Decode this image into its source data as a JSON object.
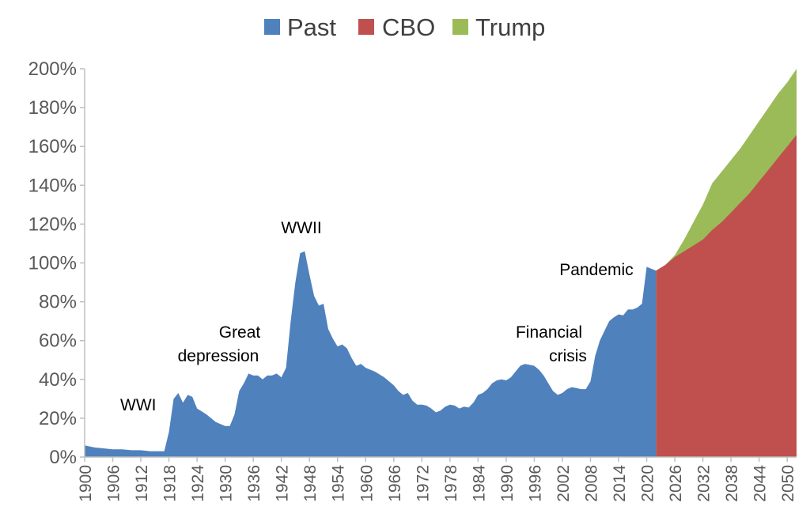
{
  "chart_data": {
    "type": "area",
    "ylim": [
      0,
      200
    ],
    "xlim": [
      1900,
      2052
    ],
    "y_ticks": [
      "0%",
      "20%",
      "40%",
      "60%",
      "80%",
      "100%",
      "120%",
      "140%",
      "160%",
      "180%",
      "200%"
    ],
    "x_ticks": [
      "1900",
      "1906",
      "1912",
      "1918",
      "1924",
      "1930",
      "1936",
      "1942",
      "1948",
      "1954",
      "1960",
      "1966",
      "1972",
      "1978",
      "1984",
      "1990",
      "1996",
      "2002",
      "2008",
      "2014",
      "2020",
      "2026",
      "2032",
      "2038",
      "2044",
      "2050"
    ],
    "legend": {
      "placement": "top-center",
      "entries": [
        "Past",
        "CBO",
        "Trump"
      ]
    },
    "grid": false,
    "series": [
      {
        "name": "Past",
        "color": "#4f81bd",
        "x": [
          1900,
          1902,
          1904,
          1906,
          1908,
          1910,
          1912,
          1914,
          1916,
          1917,
          1918,
          1919,
          1920,
          1921,
          1922,
          1923,
          1924,
          1926,
          1928,
          1929,
          1930,
          1931,
          1932,
          1933,
          1934,
          1935,
          1936,
          1937,
          1938,
          1939,
          1940,
          1941,
          1942,
          1943,
          1944,
          1945,
          1946,
          1947,
          1948,
          1949,
          1950,
          1951,
          1952,
          1953,
          1954,
          1955,
          1956,
          1957,
          1958,
          1959,
          1960,
          1962,
          1964,
          1966,
          1967,
          1968,
          1969,
          1970,
          1971,
          1972,
          1973,
          1974,
          1975,
          1976,
          1977,
          1978,
          1979,
          1980,
          1981,
          1982,
          1983,
          1984,
          1985,
          1986,
          1987,
          1988,
          1989,
          1990,
          1991,
          1992,
          1993,
          1994,
          1995,
          1996,
          1997,
          1998,
          1999,
          2000,
          2001,
          2002,
          2003,
          2004,
          2005,
          2006,
          2007,
          2008,
          2009,
          2010,
          2011,
          2012,
          2013,
          2014,
          2015,
          2016,
          2017,
          2018,
          2019,
          2020,
          2021,
          2022
        ],
        "values": [
          6,
          5,
          4.5,
          4,
          4,
          3.5,
          3.5,
          3,
          3,
          3,
          13,
          30,
          33,
          28,
          32,
          31,
          25,
          22,
          18,
          17,
          16,
          16,
          22,
          34,
          38,
          43,
          42,
          42,
          40,
          42,
          42,
          43,
          41,
          46,
          70,
          90,
          105,
          106,
          94,
          83,
          78,
          79,
          66,
          61,
          57,
          58,
          56,
          51,
          47,
          48,
          46,
          44,
          41,
          37,
          34,
          32,
          33,
          29,
          27,
          27,
          26.5,
          25,
          23,
          24,
          26,
          27,
          26.5,
          25,
          26,
          25.5,
          28,
          32,
          33,
          35,
          38,
          39.5,
          40,
          39.5,
          41,
          44,
          47,
          48,
          47.5,
          47,
          45,
          42,
          38,
          34,
          32,
          33,
          35,
          36,
          35.5,
          35,
          35,
          39,
          52,
          60,
          65,
          70,
          72,
          73.5,
          73,
          76,
          76,
          77,
          79,
          98,
          97,
          96
        ]
      },
      {
        "name": "CBO",
        "color": "#c0504d",
        "x": [
          2022,
          2024,
          2026,
          2028,
          2030,
          2032,
          2034,
          2036,
          2038,
          2040,
          2042,
          2044,
          2046,
          2048,
          2050,
          2052
        ],
        "values": [
          96,
          99,
          103,
          106,
          109,
          112,
          117,
          121,
          126,
          131,
          136,
          142,
          148,
          154,
          160,
          166
        ]
      },
      {
        "name": "Trump",
        "color": "#9bbb59",
        "x": [
          2022,
          2024,
          2026,
          2028,
          2030,
          2032,
          2034,
          2036,
          2038,
          2040,
          2042,
          2044,
          2046,
          2048,
          2050,
          2052
        ],
        "values": [
          96,
          99,
          104,
          112,
          121,
          130,
          141,
          147,
          153,
          159,
          166,
          173,
          180,
          187,
          193,
          200
        ]
      }
    ],
    "annotations": [
      {
        "text": "WWI"
      },
      {
        "text": "Great"
      },
      {
        "text": "depression"
      },
      {
        "text": "WWII"
      },
      {
        "text": "Financial"
      },
      {
        "text": "crisis"
      },
      {
        "text": "Pandemic"
      }
    ]
  }
}
